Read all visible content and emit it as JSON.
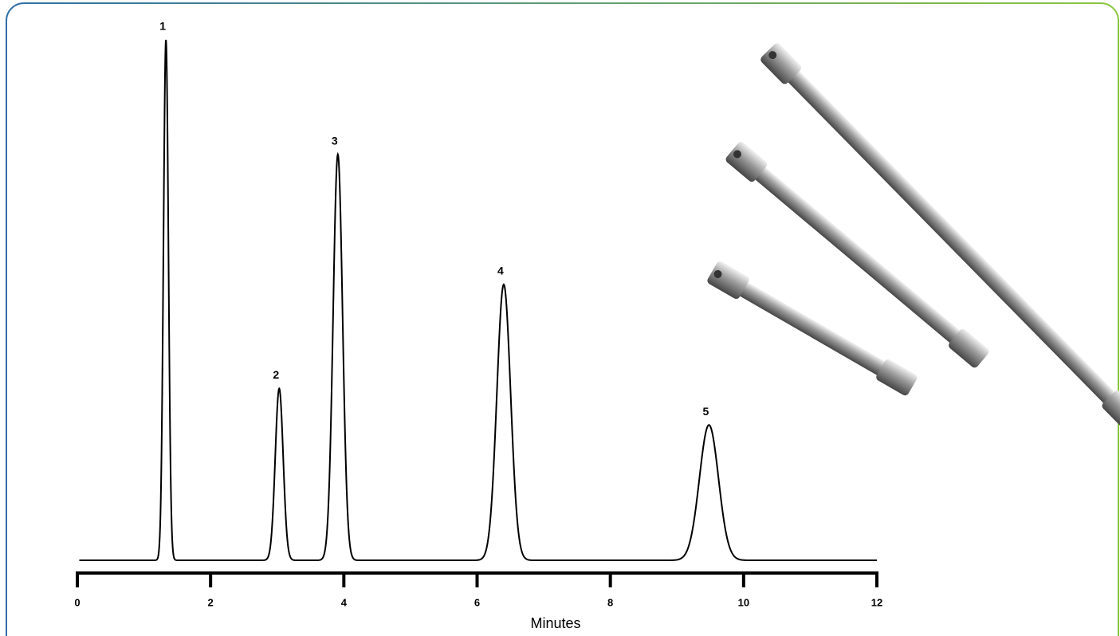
{
  "chart_data": {
    "type": "chromatogram",
    "x_label": "Minutes",
    "peaks": [
      {
        "label": "1",
        "x": 1.33,
        "height": 100
      },
      {
        "label": "2",
        "x": 3.03,
        "height": 33
      },
      {
        "label": "3",
        "x": 3.91,
        "height": 78
      },
      {
        "label": "4",
        "x": 6.4,
        "height": 53
      },
      {
        "label": "5",
        "x": 9.48,
        "height": 26
      }
    ],
    "color": "#000000",
    "xlim": [
      0,
      12
    ],
    "xticks": [
      0,
      2,
      4,
      6,
      8,
      10,
      12
    ],
    "ylim": [
      0,
      100
    ]
  }
}
